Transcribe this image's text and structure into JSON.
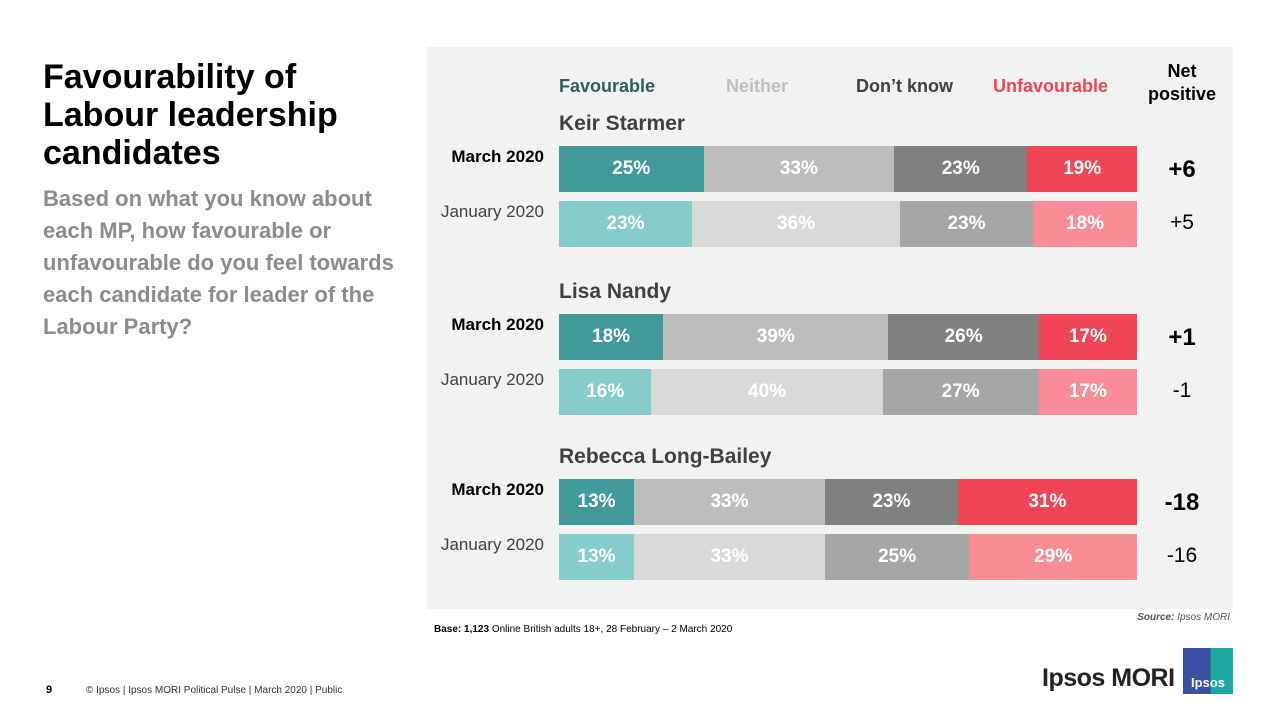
{
  "title": "Favourability of Labour leadership candidates",
  "subtitle": "Based on what you know about each MP, how favourable or unfavourable do you feel towards each candidate for leader of the Labour Party?",
  "chart_data": {
    "type": "bar",
    "orientation": "horizontal-stacked-100",
    "legend": [
      "Favourable",
      "Neither",
      "Don’t know",
      "Unfavourable"
    ],
    "net_header": "Net positive",
    "colors": {
      "Favourable": [
        "#41999a",
        "#85cccb"
      ],
      "Neither": [
        "#bdbdbd",
        "#d9d9d9"
      ],
      "Don’t know": [
        "#808080",
        "#a6a6a6"
      ],
      "Unfavourable": [
        "#f04556",
        "#f78c95"
      ]
    },
    "groups": [
      {
        "name": "Keir Starmer",
        "rows": [
          {
            "label": "March 2020",
            "values": [
              25,
              33,
              23,
              19
            ],
            "net": "+6"
          },
          {
            "label": "January 2020",
            "values": [
              23,
              36,
              23,
              18
            ],
            "net": "+5"
          }
        ]
      },
      {
        "name": "Lisa Nandy",
        "rows": [
          {
            "label": "March 2020",
            "values": [
              18,
              39,
              26,
              17
            ],
            "net": "+1"
          },
          {
            "label": "January 2020",
            "values": [
              16,
              40,
              27,
              17
            ],
            "net": "-1"
          }
        ]
      },
      {
        "name": "Rebecca Long-Bailey",
        "rows": [
          {
            "label": "March 2020",
            "values": [
              13,
              33,
              23,
              31
            ],
            "net": "-18"
          },
          {
            "label": "January 2020",
            "values": [
              13,
              33,
              25,
              29
            ],
            "net": "-16"
          }
        ]
      }
    ]
  },
  "base": {
    "label": "Base:",
    "count": "1,123",
    "text": " Online British adults 18+, 28 February – 2 March 2020"
  },
  "source": {
    "label": "Source:",
    "text": " Ipsos MORI"
  },
  "footer": {
    "page": "9",
    "text": "© Ipsos | Ipsos MORI Political Pulse | March 2020 | Public"
  },
  "logo": {
    "text": "Ipsos MORI",
    "badge": "Ipsos"
  }
}
